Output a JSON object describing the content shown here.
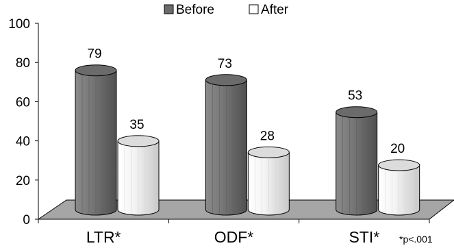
{
  "chart_data": {
    "type": "bar",
    "categories": [
      "LTR*",
      "ODF*",
      "STI*"
    ],
    "series": [
      {
        "name": "Before",
        "values": [
          79,
          73,
          53
        ],
        "color": "#6b6b6b"
      },
      {
        "name": "After",
        "values": [
          35,
          28,
          20
        ],
        "color": "#f2f2f2"
      }
    ],
    "ylim": [
      0,
      100
    ],
    "yticks": [
      0,
      20,
      40,
      60,
      80,
      100
    ],
    "legend_position": "top",
    "grid": false,
    "footnote": "*p<.001"
  }
}
